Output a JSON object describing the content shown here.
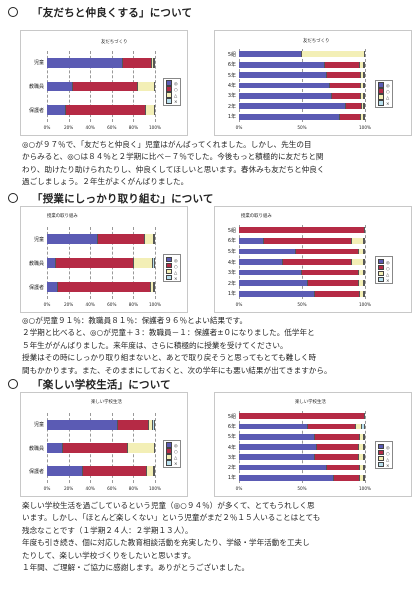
{
  "sections": [
    {
      "heading": "「友だちと仲良くする」について",
      "left": {
        "title": "友だちづくり",
        "categories": [
          "児童",
          "教職員",
          "保護者"
        ],
        "ticks": [
          "0%",
          "20%",
          "40%",
          "60%",
          "80%",
          "100%"
        ]
      },
      "right": {
        "title": "友だちづくり",
        "categories": [
          "5組",
          "6年",
          "5年",
          "4年",
          "3年",
          "2年",
          "1年"
        ],
        "ticks": [
          "0%",
          "50%",
          "100%"
        ]
      },
      "paragraph": [
        "◎○が９７％で、「友だちと仲良く」児童はがんばってくれました。しかし、先生の目",
        "からみると、◎○は８４％と２学期に比べ－７％でした。今後もっと積極的に友だちと関",
        "わり、助けたり助けられたりし、仲良くしてほしいと思います。春休みも友だちと仲良く",
        "過ごしましょう。２年生がよくがんばりました。"
      ]
    },
    {
      "heading": "「授業にしっかり取り組む」について",
      "left": {
        "title": "授業の取り組み",
        "categories": [
          "児童",
          "教職員",
          "保護者"
        ],
        "ticks": [
          "0%",
          "20%",
          "40%",
          "60%",
          "80%",
          "100%"
        ]
      },
      "right": {
        "title": "授業の取り組み",
        "categories": [
          "5組",
          "6年",
          "5年",
          "4年",
          "3年",
          "2年",
          "1年"
        ],
        "ticks": [
          "0%",
          "50%",
          "100%"
        ]
      },
      "paragraph": [
        "◎○が児童９１％：教職員８１％：保護者９６％とよい結果です。",
        "２学期と比べると、◎○が児童＋３：教職員－１：保護者±０になりました。低学年と",
        "５年生ががんばりました。来年度は、さらに積極的に授業を受けてください。",
        "授業はその時にしっかり取り組まないと、あとで取り戻そうと思ってもとても難しく時",
        "間もかかります。また、そのままにしておくと、次の学年にも悪い結果が出てきますから。"
      ]
    },
    {
      "heading": "「楽しい学校生活」について",
      "left": {
        "title": "楽しい学校生活",
        "categories": [
          "児童",
          "教職員",
          "保護者"
        ],
        "ticks": [
          "0%",
          "20%",
          "40%",
          "60%",
          "80%",
          "100%"
        ]
      },
      "right": {
        "title": "楽しい学校生活",
        "categories": [
          "5組",
          "6年",
          "5年",
          "4年",
          "3年",
          "2年",
          "1年"
        ],
        "ticks": [
          "0%",
          "50%",
          "100%"
        ]
      },
      "paragraph": [
        "楽しい学校生活を過ごしているという児童（◎○９４％）が多くて、とてもうれしく思",
        "います。しかし、「ほとんど楽しくない」という児童がまだ２％１５人いることはとても",
        "残念なことです（１学期２４人：２学期１３人）。",
        "年度も引き続き、個に対応した教育相談活動を充実したり、学級・学年活動を工夫し",
        "たりして、楽しい学校づくりをしたいと思います。",
        "１年間、ご理解・ご協力に感謝します。ありがとうございました。"
      ]
    }
  ],
  "legend_labels": [
    "◎",
    "○",
    "△",
    "×"
  ],
  "colors": {
    "very_good": "#5b5bb4",
    "good": "#b52a45",
    "fair": "#f3efb6",
    "poor": "#b9e0ee"
  },
  "chart_data": [
    {
      "type": "bar",
      "title": "友だちづくり",
      "orientation": "horizontal",
      "stacked": "percent",
      "categories": [
        "児童",
        "教職員",
        "保護者"
      ],
      "series": [
        {
          "name": "◎",
          "values": [
            70,
            24,
            18
          ]
        },
        {
          "name": "○",
          "values": [
            27,
            60,
            74
          ]
        },
        {
          "name": "△",
          "values": [
            2,
            16,
            8
          ]
        },
        {
          "name": "×",
          "values": [
            1,
            0,
            0
          ]
        }
      ],
      "xlim": [
        0,
        100
      ]
    },
    {
      "type": "bar",
      "title": "友だちづくり",
      "orientation": "horizontal",
      "stacked": "percent",
      "categories": [
        "5組",
        "6年",
        "5年",
        "4年",
        "3年",
        "2年",
        "1年"
      ],
      "series": [
        {
          "name": "◎",
          "values": [
            50,
            68,
            70,
            72,
            74,
            85,
            80
          ]
        },
        {
          "name": "○",
          "values": [
            0,
            28,
            27,
            25,
            23,
            13,
            17
          ]
        },
        {
          "name": "△",
          "values": [
            50,
            3,
            2,
            2,
            2,
            1,
            2
          ]
        },
        {
          "name": "×",
          "values": [
            0,
            1,
            1,
            1,
            1,
            1,
            1
          ]
        }
      ],
      "xlim": [
        0,
        100
      ]
    },
    {
      "type": "bar",
      "title": "授業の取り組み",
      "orientation": "horizontal",
      "stacked": "percent",
      "categories": [
        "児童",
        "教職員",
        "保護者"
      ],
      "series": [
        {
          "name": "◎",
          "values": [
            47,
            8,
            10
          ]
        },
        {
          "name": "○",
          "values": [
            44,
            73,
            86
          ]
        },
        {
          "name": "△",
          "values": [
            8,
            17,
            3
          ]
        },
        {
          "name": "×",
          "values": [
            1,
            2,
            1
          ]
        }
      ],
      "xlim": [
        0,
        100
      ]
    },
    {
      "type": "bar",
      "title": "授業の取り組み",
      "orientation": "horizontal",
      "stacked": "percent",
      "categories": [
        "5組",
        "6年",
        "5年",
        "4年",
        "3年",
        "2年",
        "1年"
      ],
      "series": [
        {
          "name": "◎",
          "values": [
            0,
            20,
            45,
            35,
            50,
            55,
            60
          ]
        },
        {
          "name": "○",
          "values": [
            100,
            70,
            50,
            55,
            45,
            40,
            36
          ]
        },
        {
          "name": "△",
          "values": [
            0,
            9,
            4,
            9,
            4,
            4,
            3
          ]
        },
        {
          "name": "×",
          "values": [
            0,
            1,
            1,
            1,
            1,
            1,
            1
          ]
        }
      ],
      "xlim": [
        0,
        100
      ]
    },
    {
      "type": "bar",
      "title": "楽しい学校生活",
      "orientation": "horizontal",
      "stacked": "percent",
      "categories": [
        "児童",
        "教職員",
        "保護者"
      ],
      "series": [
        {
          "name": "◎",
          "values": [
            66,
            15,
            33
          ]
        },
        {
          "name": "○",
          "values": [
            28,
            60,
            60
          ]
        },
        {
          "name": "△",
          "values": [
            4,
            25,
            6
          ]
        },
        {
          "name": "×",
          "values": [
            2,
            0,
            1
          ]
        }
      ],
      "xlim": [
        0,
        100
      ]
    },
    {
      "type": "bar",
      "title": "楽しい学校生活",
      "orientation": "horizontal",
      "stacked": "percent",
      "categories": [
        "5組",
        "6年",
        "5年",
        "4年",
        "3年",
        "2年",
        "1年"
      ],
      "series": [
        {
          "name": "◎",
          "values": [
            0,
            55,
            60,
            62,
            60,
            70,
            75
          ]
        },
        {
          "name": "○",
          "values": [
            100,
            38,
            36,
            33,
            35,
            26,
            21
          ]
        },
        {
          "name": "△",
          "values": [
            0,
            5,
            3,
            4,
            4,
            3,
            3
          ]
        },
        {
          "name": "×",
          "values": [
            0,
            2,
            1,
            1,
            1,
            1,
            1
          ]
        }
      ],
      "xlim": [
        0,
        100
      ]
    }
  ]
}
